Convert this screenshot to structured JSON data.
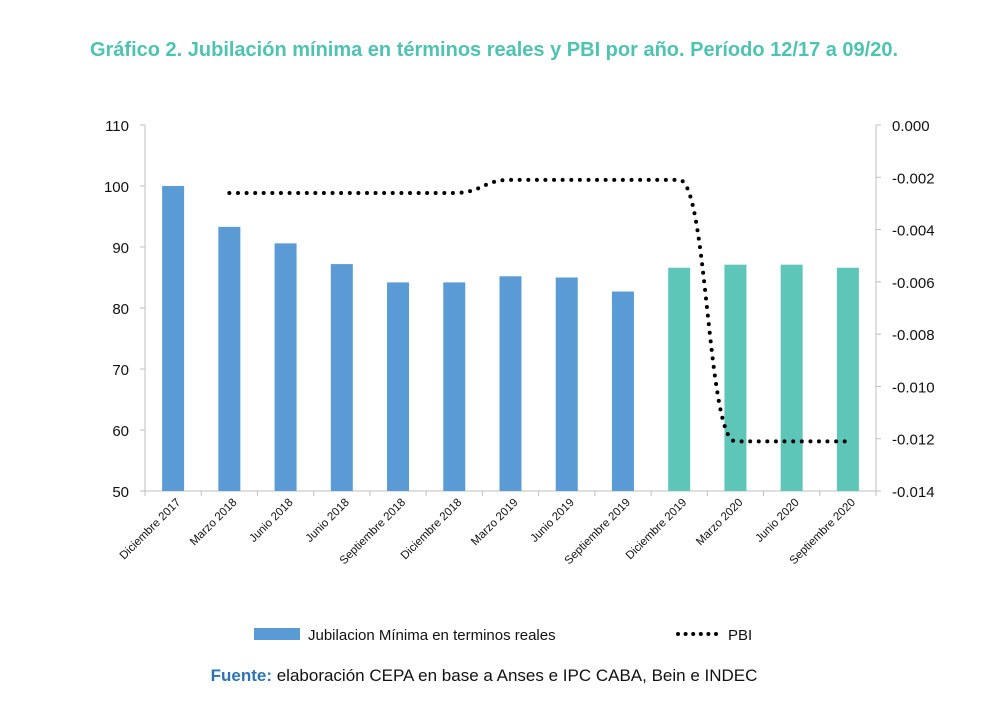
{
  "chart_data": {
    "type": "bar",
    "title": "Gráfico 2. Jubilación mínima en términos reales y PBI por año. Período 12/17 a 09/20.",
    "categories": [
      "Diciembre 2017",
      "Marzo 2018",
      "Junio 2018",
      "Junio 2018",
      "Septiembre 2018",
      "Diciembre 2018",
      "Marzo 2019",
      "Junio 2019",
      "Septiembre 2019",
      "Diciembre 2019",
      "Marzo 2020",
      "Junio 2020",
      "Septiembre 2020"
    ],
    "y_left": {
      "min": 50,
      "max": 110,
      "step": 10,
      "ticks": [
        "110",
        "100",
        "90",
        "80",
        "70",
        "60",
        "50"
      ]
    },
    "y_right": {
      "min": -0.014,
      "max": 0.0,
      "ticks": [
        "0.000",
        "-0.002",
        "-0.004",
        "-0.006",
        "-0.008",
        "-0.010",
        "-0.012",
        "-0.014"
      ]
    },
    "series": [
      {
        "name": "Jubilacion Mínima en terminos reales",
        "kind": "bar",
        "axis": "left",
        "values": [
          100,
          93.3,
          90.6,
          87.2,
          84.2,
          84.2,
          85.2,
          85.0,
          82.7,
          86.6,
          87.1,
          87.1,
          86.6
        ],
        "colors": [
          "#5b9bd5",
          "#5b9bd5",
          "#5b9bd5",
          "#5b9bd5",
          "#5b9bd5",
          "#5b9bd5",
          "#5b9bd5",
          "#5b9bd5",
          "#5b9bd5",
          "#5ec5b9",
          "#5ec5b9",
          "#5ec5b9",
          "#5ec5b9"
        ]
      },
      {
        "name": "PBI",
        "kind": "line",
        "style": "dotted",
        "axis": "right",
        "color": "#000000",
        "values": [
          null,
          -0.0026,
          -0.0026,
          -0.0026,
          -0.0026,
          -0.0026,
          -0.0021,
          -0.0021,
          -0.0021,
          -0.0021,
          -0.0121,
          -0.0121,
          -0.0121
        ]
      }
    ],
    "legend": {
      "position": "bottom"
    },
    "grid": false
  },
  "source": {
    "label": "Fuente:",
    "text": " elaboración CEPA en base a Anses e IPC CABA, Bein e INDEC"
  }
}
